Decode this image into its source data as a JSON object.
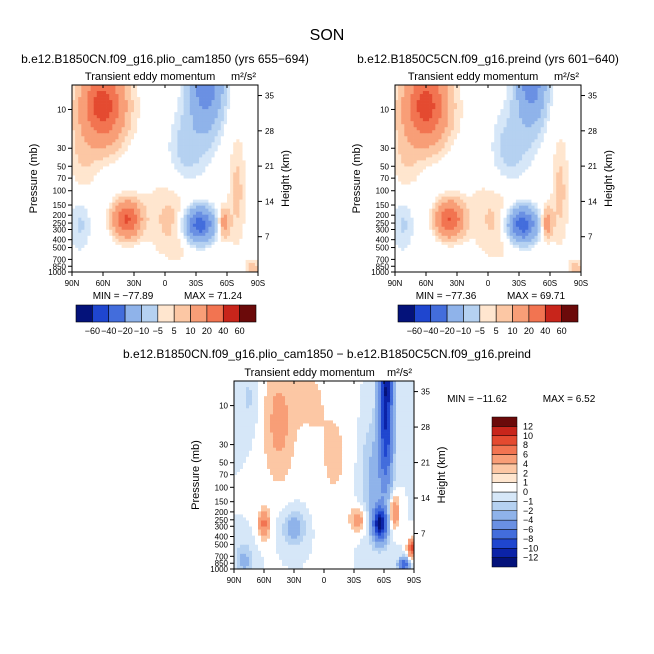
{
  "figure_title": "SON",
  "colors": {
    "pos": [
      "#ffe6cf",
      "#fcc7a4",
      "#f89e77",
      "#f27451",
      "#e44a30",
      "#c8251b",
      "#97100f",
      "#6b0a0a"
    ],
    "neg": [
      "#d6e7f8",
      "#b5d1f1",
      "#8fb3ea",
      "#6a90e3",
      "#436ddc",
      "#1f46cf",
      "#0b23a8",
      "#04127a"
    ],
    "zero": "#ffffff"
  },
  "chart_data": [
    {
      "type": "contour",
      "title": "b.e12.B1850CN.f09_g16.plio_cam1850 (yrs 655−694)",
      "subtitle": "Transient eddy momentum",
      "units": "m²/s²",
      "xlabel": "",
      "ylabel": "Pressure (mb)",
      "ylabel_right": "Height (km)",
      "x_ticks": [
        "90N",
        "60N",
        "30N",
        "0",
        "30S",
        "60S",
        "90S"
      ],
      "x_tick_values": [
        90,
        60,
        30,
        0,
        -30,
        -60,
        -90
      ],
      "y_ticks": [
        "10",
        "30",
        "50",
        "70",
        "100",
        "150",
        "200",
        "250",
        "300",
        "400",
        "500",
        "700",
        "850",
        "1000"
      ],
      "y_tick_values": [
        10,
        30,
        50,
        70,
        100,
        150,
        200,
        250,
        300,
        400,
        500,
        700,
        850,
        1000
      ],
      "height_ticks": [
        "35",
        "28",
        "21",
        "14",
        "7"
      ],
      "height_tick_values": [
        35,
        28,
        21,
        14,
        7
      ],
      "ylim": [
        5,
        1000
      ],
      "min_label": "MIN = −77.89",
      "max_label": "MAX =  71.24",
      "min": -77.89,
      "max": 71.24,
      "lobes": [
        {
          "lat": 60,
          "logp": 0.95,
          "slat": 14,
          "slogp": 0.32,
          "amp": 71.2
        },
        {
          "lat": 37,
          "logp": 2.35,
          "slat": 9,
          "slogp": 0.15,
          "amp": 62
        },
        {
          "lat": -12,
          "logp": 2.35,
          "slat": 20,
          "slogp": 0.35,
          "amp": 14
        },
        {
          "lat": -40,
          "logp": 0.6,
          "slat": 11,
          "slogp": 0.42,
          "amp": -60
        },
        {
          "lat": -20,
          "logp": 1.5,
          "slat": 14,
          "slogp": 0.4,
          "amp": -14
        },
        {
          "lat": -33,
          "logp": 2.42,
          "slat": 10,
          "slogp": 0.15,
          "amp": -77.9
        },
        {
          "lat": -57,
          "logp": 2.4,
          "slat": 4,
          "slogp": 0.13,
          "amp": 28
        },
        {
          "lat": 82,
          "logp": 2.4,
          "slat": 8,
          "slogp": 0.25,
          "amp": -12
        },
        {
          "lat": 80,
          "logp": 1.6,
          "slat": 10,
          "slogp": 0.4,
          "amp": 9
        },
        {
          "lat": -70,
          "logp": 2.0,
          "slat": 6,
          "slogp": 0.5,
          "amp": 12
        },
        {
          "lat": -85,
          "logp": 2.95,
          "slat": 5,
          "slogp": 0.08,
          "amp": 14
        },
        {
          "lat": 10,
          "logp": 1.2,
          "slat": 18,
          "slogp": 0.6,
          "amp": 3
        }
      ]
    },
    {
      "type": "contour",
      "title": "b.e12.B1850C5CN.f09_g16.preind (yrs 601−640)",
      "subtitle": "Transient eddy momentum",
      "units": "m²/s²",
      "xlabel": "",
      "ylabel": "Pressure (mb)",
      "ylabel_right": "Height (km)",
      "x_ticks": [
        "90N",
        "60N",
        "30N",
        "0",
        "30S",
        "60S",
        "90S"
      ],
      "x_tick_values": [
        90,
        60,
        30,
        0,
        -30,
        -60,
        -90
      ],
      "y_ticks": [
        "10",
        "30",
        "50",
        "70",
        "100",
        "150",
        "200",
        "250",
        "300",
        "400",
        "500",
        "700",
        "850",
        "1000"
      ],
      "y_tick_values": [
        10,
        30,
        50,
        70,
        100,
        150,
        200,
        250,
        300,
        400,
        500,
        700,
        850,
        1000
      ],
      "height_ticks": [
        "35",
        "28",
        "21",
        "14",
        "7"
      ],
      "height_tick_values": [
        35,
        28,
        21,
        14,
        7
      ],
      "ylim": [
        5,
        1000
      ],
      "min_label": "MIN = −77.36",
      "max_label": "MAX =  69.71",
      "min": -77.36,
      "max": 69.71,
      "lobes": [
        {
          "lat": 60,
          "logp": 0.95,
          "slat": 14,
          "slogp": 0.32,
          "amp": 69.7
        },
        {
          "lat": 37,
          "logp": 2.35,
          "slat": 9,
          "slogp": 0.15,
          "amp": 60
        },
        {
          "lat": -12,
          "logp": 2.35,
          "slat": 20,
          "slogp": 0.35,
          "amp": 13
        },
        {
          "lat": -42,
          "logp": 0.55,
          "slat": 10,
          "slogp": 0.42,
          "amp": -58
        },
        {
          "lat": -20,
          "logp": 1.5,
          "slat": 14,
          "slogp": 0.4,
          "amp": -14
        },
        {
          "lat": -33,
          "logp": 2.42,
          "slat": 10,
          "slogp": 0.15,
          "amp": -77.4
        },
        {
          "lat": -57,
          "logp": 2.4,
          "slat": 4,
          "slogp": 0.13,
          "amp": 30
        },
        {
          "lat": 82,
          "logp": 2.4,
          "slat": 8,
          "slogp": 0.25,
          "amp": -12
        },
        {
          "lat": 80,
          "logp": 1.6,
          "slat": 10,
          "slogp": 0.4,
          "amp": 9
        },
        {
          "lat": -70,
          "logp": 2.0,
          "slat": 6,
          "slogp": 0.5,
          "amp": 12
        },
        {
          "lat": -85,
          "logp": 2.95,
          "slat": 5,
          "slogp": 0.08,
          "amp": 14
        },
        {
          "lat": 10,
          "logp": 1.2,
          "slat": 18,
          "slogp": 0.6,
          "amp": 3
        }
      ]
    },
    {
      "type": "contour",
      "title": "b.e12.B1850CN.f09_g16.plio_cam1850 − b.e12.B1850C5CN.f09_g16.preind",
      "subtitle": "Transient eddy momentum",
      "units": "m²/s²",
      "xlabel": "",
      "ylabel": "Pressure (mb)",
      "ylabel_right": "Height (km)",
      "x_ticks": [
        "90N",
        "60N",
        "30N",
        "0",
        "30S",
        "60S",
        "90S"
      ],
      "x_tick_values": [
        90,
        60,
        30,
        0,
        -30,
        -60,
        -90
      ],
      "y_ticks": [
        "10",
        "30",
        "50",
        "70",
        "100",
        "150",
        "200",
        "250",
        "300",
        "400",
        "500",
        "700",
        "850",
        "1000"
      ],
      "y_tick_values": [
        10,
        30,
        50,
        70,
        100,
        150,
        200,
        250,
        300,
        400,
        500,
        700,
        850,
        1000
      ],
      "height_ticks": [
        "35",
        "28",
        "21",
        "14",
        "7"
      ],
      "height_tick_values": [
        35,
        28,
        21,
        14,
        7
      ],
      "ylim": [
        5,
        1000
      ],
      "min_label": "MIN = −11.62",
      "max_label": "MAX =    6.52",
      "min": -11.62,
      "max": 6.52,
      "lobes": [
        {
          "lat": -62,
          "logp": 1.2,
          "slat": 5,
          "slogp": 0.55,
          "amp": -9.5
        },
        {
          "lat": -56,
          "logp": 2.45,
          "slat": 5,
          "slogp": 0.14,
          "amp": -11.6
        },
        {
          "lat": -62,
          "logp": 0.75,
          "slat": 5,
          "slogp": 0.18,
          "amp": -5
        },
        {
          "lat": -50,
          "logp": 1.9,
          "slat": 10,
          "slogp": 0.5,
          "amp": -2.5
        },
        {
          "lat": -80,
          "logp": 2.95,
          "slat": 4,
          "slogp": 0.06,
          "amp": -8
        },
        {
          "lat": 45,
          "logp": 1.2,
          "slat": 12,
          "slogp": 0.55,
          "amp": 2.5
        },
        {
          "lat": 60,
          "logp": 2.45,
          "slat": 4,
          "slogp": 0.12,
          "amp": 4.5
        },
        {
          "lat": 30,
          "logp": 2.5,
          "slat": 8,
          "slogp": 0.15,
          "amp": -3
        },
        {
          "lat": -35,
          "logp": 2.4,
          "slat": 6,
          "slogp": 0.12,
          "amp": 3
        },
        {
          "lat": -70,
          "logp": 2.3,
          "slat": 4,
          "slogp": 0.15,
          "amp": 4
        },
        {
          "lat": 80,
          "logp": 2.9,
          "slat": 6,
          "slogp": 0.15,
          "amp": -2.5
        },
        {
          "lat": -10,
          "logp": 1.6,
          "slat": 15,
          "slogp": 0.6,
          "amp": 1.2
        },
        {
          "lat": 15,
          "logp": 0.9,
          "slat": 10,
          "slogp": 0.3,
          "amp": 1.2
        },
        {
          "lat": 75,
          "logp": 0.9,
          "slat": 8,
          "slogp": 0.3,
          "amp": -1.2
        },
        {
          "lat": -88,
          "logp": 2.75,
          "slat": 3,
          "slogp": 0.08,
          "amp": 6.5
        }
      ]
    }
  ],
  "colorbars": [
    {
      "orientation": "horizontal",
      "levels": [
        -60,
        -40,
        -20,
        -10,
        -5,
        5,
        10,
        20,
        40,
        60
      ],
      "labels": [
        "−60",
        "−40",
        "−20",
        "−10",
        "−5",
        "5",
        "10",
        "20",
        "40",
        "60"
      ]
    },
    {
      "orientation": "horizontal",
      "levels": [
        -60,
        -40,
        -20,
        -10,
        -5,
        5,
        10,
        20,
        40,
        60
      ],
      "labels": [
        "−60",
        "−40",
        "−20",
        "−10",
        "−5",
        "5",
        "10",
        "20",
        "40",
        "60"
      ]
    },
    {
      "orientation": "vertical",
      "levels": [
        -12,
        -10,
        -8,
        -6,
        -4,
        -2,
        -1,
        0,
        1,
        2,
        4,
        6,
        8,
        10,
        12
      ],
      "labels": [
        "−12",
        "−10",
        "−8",
        "−6",
        "−4",
        "−2",
        "−1",
        "0",
        "1",
        "2",
        "4",
        "6",
        "8",
        "10",
        "12"
      ]
    }
  ]
}
